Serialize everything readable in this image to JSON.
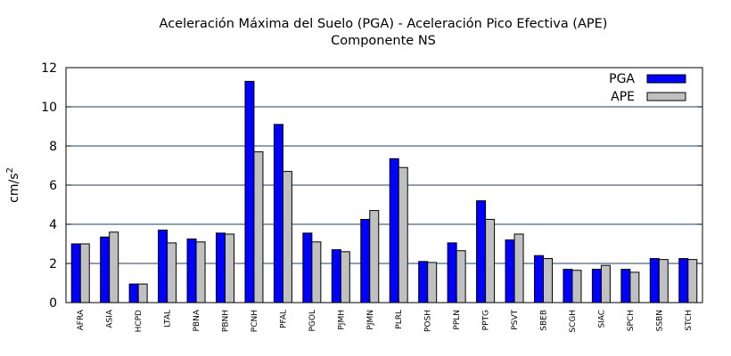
{
  "chart_data": {
    "type": "bar",
    "title": "Aceleración Máxima del Suelo (PGA) -  Aceleración Pico Efectiva (APE)",
    "subtitle": "Componente NS",
    "xlabel": "",
    "ylabel": "cm/s",
    "ylabel_sup": "2",
    "ylim": [
      0,
      12
    ],
    "yticks": [
      0,
      2,
      4,
      6,
      8,
      10,
      12
    ],
    "grid": true,
    "legend_position": "top-right",
    "categories": [
      "AFRA",
      "ASIA",
      "HCPD",
      "LTAL",
      "PBNA",
      "PBNH",
      "PCNH",
      "PFAL",
      "PGOL",
      "PJMH",
      "PJMN",
      "PLRL",
      "POSH",
      "PPLN",
      "PPTG",
      "PSVT",
      "SBEB",
      "SCGH",
      "SIAC",
      "SPCH",
      "SSBN",
      "STCH"
    ],
    "series": [
      {
        "name": "PGA",
        "color": "#0000ff",
        "values": [
          3.0,
          3.35,
          0.95,
          3.7,
          3.25,
          3.55,
          11.3,
          9.1,
          3.55,
          2.7,
          4.25,
          7.35,
          2.1,
          3.05,
          5.2,
          3.2,
          2.4,
          1.7,
          1.7,
          1.7,
          2.25,
          2.25
        ]
      },
      {
        "name": "APE",
        "color": "#c0c0c0",
        "values": [
          3.0,
          3.6,
          0.95,
          3.05,
          3.1,
          3.5,
          7.7,
          6.7,
          3.1,
          2.6,
          4.7,
          6.9,
          2.05,
          2.65,
          4.25,
          3.5,
          2.25,
          1.65,
          1.9,
          1.55,
          2.2,
          2.2
        ]
      }
    ]
  }
}
